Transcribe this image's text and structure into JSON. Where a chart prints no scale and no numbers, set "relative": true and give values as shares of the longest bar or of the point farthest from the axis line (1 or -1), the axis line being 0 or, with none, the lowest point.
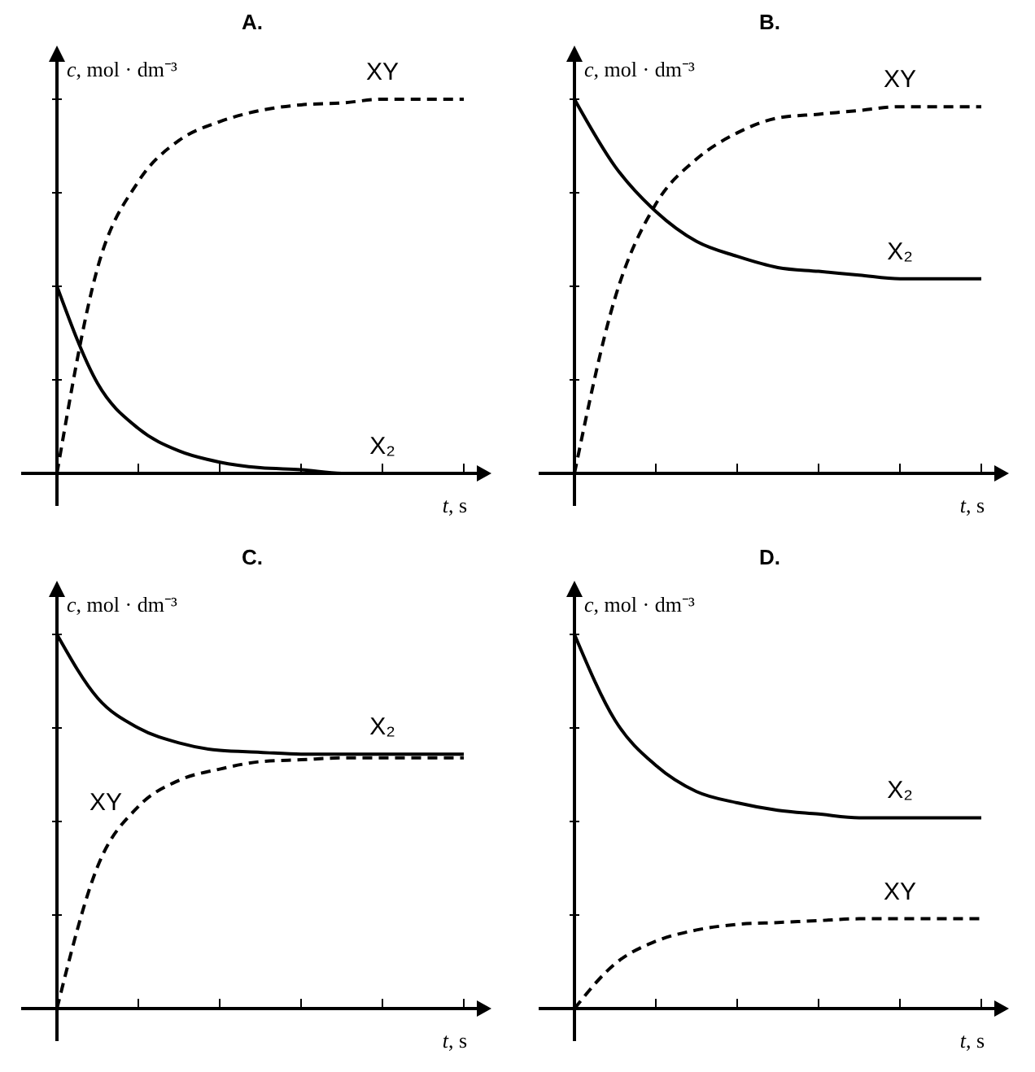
{
  "chart_data": [
    {
      "type": "line",
      "relative": true,
      "title": "A.",
      "xlabel": "t, s",
      "ylabel": "c, mol · dm⁻³",
      "categories": [
        null,
        null,
        null,
        null,
        null,
        null,
        null,
        null,
        null,
        null,
        null
      ],
      "series": [
        {
          "name": "XY",
          "color": "#000000",
          "line_style": "dashed",
          "values": [
            0,
            0.55,
            0.78,
            0.89,
            0.94,
            0.97,
            0.985,
            0.99,
            1,
            1,
            1
          ]
        },
        {
          "name": "X₂",
          "color": "#000000",
          "line_style": "solid",
          "values": [
            0.5,
            0.24,
            0.12,
            0.06,
            0.03,
            0.015,
            0.01,
            0,
            0,
            0,
            0
          ]
        }
      ]
    },
    {
      "type": "line",
      "relative": true,
      "title": "B.",
      "xlabel": "t, s",
      "ylabel": "c, mol · dm⁻³",
      "categories": [
        null,
        null,
        null,
        null,
        null,
        null,
        null,
        null,
        null,
        null,
        null
      ],
      "series": [
        {
          "name": "XY",
          "color": "#000000",
          "line_style": "dashed",
          "values": [
            0,
            0.47,
            0.72,
            0.84,
            0.91,
            0.95,
            0.96,
            0.97,
            0.98,
            0.98,
            0.98
          ]
        },
        {
          "name": "X₂",
          "color": "#000000",
          "line_style": "solid",
          "values": [
            1,
            0.82,
            0.7,
            0.62,
            0.58,
            0.55,
            0.54,
            0.53,
            0.52,
            0.52,
            0.52
          ]
        }
      ]
    },
    {
      "type": "line",
      "relative": true,
      "title": "C.",
      "xlabel": "t, s",
      "ylabel": "c, mol · dm⁻³",
      "categories": [
        null,
        null,
        null,
        null,
        null,
        null,
        null,
        null,
        null,
        null,
        null
      ],
      "series": [
        {
          "name": "X₂",
          "color": "#000000",
          "line_style": "solid",
          "values": [
            1,
            0.83,
            0.75,
            0.71,
            0.69,
            0.685,
            0.68,
            0.68,
            0.68,
            0.68,
            0.68
          ]
        },
        {
          "name": "XY",
          "color": "#000000",
          "line_style": "dashed",
          "values": [
            0,
            0.38,
            0.54,
            0.61,
            0.64,
            0.66,
            0.665,
            0.67,
            0.67,
            0.67,
            0.67
          ]
        }
      ]
    },
    {
      "type": "line",
      "relative": true,
      "title": "D.",
      "xlabel": "t, s",
      "ylabel": "c, mol · dm⁻³",
      "categories": [
        null,
        null,
        null,
        null,
        null,
        null,
        null,
        null,
        null,
        null,
        null
      ],
      "series": [
        {
          "name": "X₂",
          "color": "#000000",
          "line_style": "solid",
          "values": [
            1,
            0.77,
            0.65,
            0.58,
            0.55,
            0.53,
            0.52,
            0.51,
            0.51,
            0.51,
            0.51
          ]
        },
        {
          "name": "XY",
          "color": "#000000",
          "line_style": "dashed",
          "values": [
            0,
            0.12,
            0.18,
            0.21,
            0.225,
            0.23,
            0.235,
            0.24,
            0.24,
            0.24,
            0.24
          ]
        }
      ]
    }
  ]
}
